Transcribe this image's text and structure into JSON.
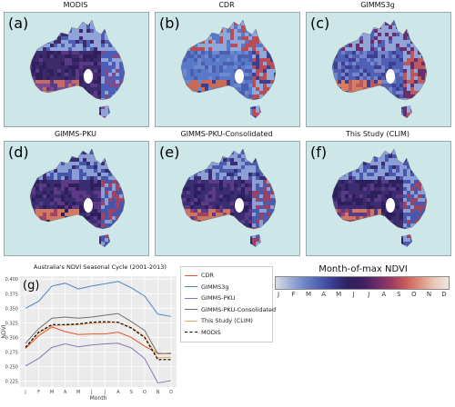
{
  "panels": [
    {
      "title": "MODIS",
      "letter": "(a)"
    },
    {
      "title": "CDR",
      "letter": "(b)"
    },
    {
      "title": "GIMMS3g",
      "letter": "(c)"
    },
    {
      "title": "GIMMS-PKU",
      "letter": "(d)"
    },
    {
      "title": "GIMMS-PKU-Consolidated",
      "letter": "(e)"
    },
    {
      "title": "This Study (CLIM)",
      "letter": "(f)"
    }
  ],
  "colorbar": {
    "title": "Month-of-max NDVI",
    "months": [
      "J",
      "F",
      "M",
      "A",
      "M",
      "J",
      "J",
      "A",
      "S",
      "O",
      "N",
      "D"
    ]
  },
  "chart_data": {
    "type": "line",
    "title": "Australia's NDVI Seasonal Cycle (2001-2013)",
    "panel_letter": "(g)",
    "xlabel": "Month",
    "ylabel": "NDVI",
    "categories": [
      "J",
      "F",
      "M",
      "A",
      "M",
      "J",
      "J",
      "A",
      "S",
      "O",
      "N",
      "D"
    ],
    "ylim": [
      0.215,
      0.405
    ],
    "yticks": [
      0.225,
      0.25,
      0.275,
      0.3,
      0.325,
      0.35,
      0.375,
      0.4
    ],
    "ytick_labels": [
      "0.225",
      "0.250",
      "0.275",
      "0.300",
      "0.325",
      "0.350",
      "0.375",
      "0.400"
    ],
    "grid": true,
    "series": [
      {
        "name": "CDR",
        "color": "#e8542c",
        "dash": false,
        "values": [
          0.281,
          0.303,
          0.318,
          0.31,
          0.305,
          0.306,
          0.306,
          0.309,
          0.3,
          0.285,
          0.273,
          0.272
        ]
      },
      {
        "name": "GIMMS3g",
        "color": "#4a86c5",
        "dash": false,
        "values": [
          0.35,
          0.362,
          0.388,
          0.393,
          0.383,
          0.388,
          0.392,
          0.396,
          0.385,
          0.371,
          0.34,
          0.336
        ]
      },
      {
        "name": "GIMMS-PKU",
        "color": "#8a73b8",
        "dash": false,
        "values": [
          0.251,
          0.264,
          0.283,
          0.289,
          0.284,
          0.287,
          0.289,
          0.29,
          0.282,
          0.264,
          0.222,
          0.226
        ]
      },
      {
        "name": "GIMMS-PKU-Consolidated",
        "color": "#707070",
        "dash": false,
        "values": [
          0.29,
          0.315,
          0.333,
          0.335,
          0.333,
          0.335,
          0.338,
          0.341,
          0.327,
          0.312,
          0.272,
          0.273
        ]
      },
      {
        "name": "This Study (CLIM)",
        "color": "#f2a65a",
        "dash": false,
        "values": [
          0.282,
          0.308,
          0.32,
          0.321,
          0.322,
          0.324,
          0.325,
          0.326,
          0.317,
          0.302,
          0.265,
          0.266
        ]
      },
      {
        "name": "MODIS",
        "color": "#000000",
        "dash": true,
        "values": [
          0.283,
          0.309,
          0.322,
          0.322,
          0.323,
          0.326,
          0.327,
          0.326,
          0.316,
          0.3,
          0.262,
          0.262
        ]
      }
    ]
  }
}
